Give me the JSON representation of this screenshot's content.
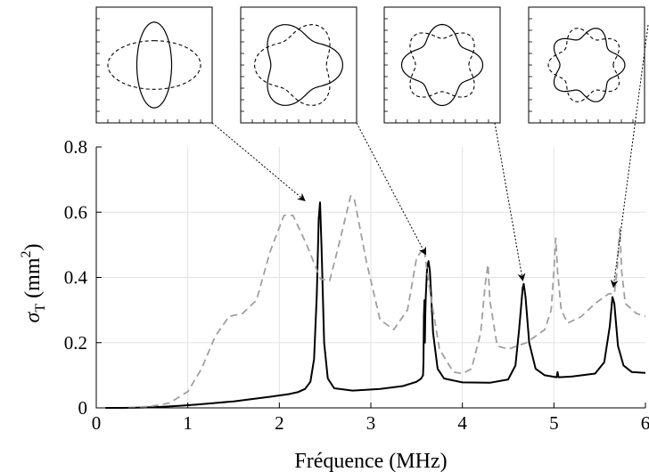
{
  "chart_data": {
    "type": "line",
    "xlabel": "Fréquence (MHz)",
    "ylabel": {
      "base": "σ",
      "sub": "T",
      "unit": "(mm",
      "sup": "2",
      "close": ")"
    },
    "xlim": [
      0,
      6
    ],
    "ylim": [
      0,
      0.8
    ],
    "xticks": [
      "0",
      "1",
      "2",
      "3",
      "4",
      "5",
      "6"
    ],
    "yticks": [
      "0",
      "0.2",
      "0.4",
      "0.6",
      "0.8"
    ],
    "grid": true,
    "series": [
      {
        "style": "solid",
        "color": "#000000",
        "points": [
          [
            0.1,
            0.0
          ],
          [
            0.3,
            0.0
          ],
          [
            0.5,
            0.001
          ],
          [
            0.7,
            0.003
          ],
          [
            0.9,
            0.006
          ],
          [
            1.1,
            0.01
          ],
          [
            1.3,
            0.015
          ],
          [
            1.5,
            0.02
          ],
          [
            1.7,
            0.027
          ],
          [
            1.9,
            0.034
          ],
          [
            2.1,
            0.042
          ],
          [
            2.2,
            0.048
          ],
          [
            2.28,
            0.058
          ],
          [
            2.34,
            0.08
          ],
          [
            2.38,
            0.15
          ],
          [
            2.41,
            0.35
          ],
          [
            2.43,
            0.58
          ],
          [
            2.445,
            0.63
          ],
          [
            2.46,
            0.5
          ],
          [
            2.49,
            0.2
          ],
          [
            2.53,
            0.09
          ],
          [
            2.6,
            0.06
          ],
          [
            2.8,
            0.053
          ],
          [
            3.1,
            0.058
          ],
          [
            3.35,
            0.067
          ],
          [
            3.5,
            0.08
          ],
          [
            3.55,
            0.09
          ],
          [
            3.57,
            0.1
          ],
          [
            3.575,
            0.135
          ],
          [
            3.58,
            0.28
          ],
          [
            3.585,
            0.33
          ],
          [
            3.59,
            0.2
          ],
          [
            3.595,
            0.29
          ],
          [
            3.6,
            0.34
          ],
          [
            3.615,
            0.43
          ],
          [
            3.63,
            0.45
          ],
          [
            3.645,
            0.42
          ],
          [
            3.68,
            0.23
          ],
          [
            3.73,
            0.12
          ],
          [
            3.8,
            0.09
          ],
          [
            4.0,
            0.078
          ],
          [
            4.3,
            0.077
          ],
          [
            4.5,
            0.087
          ],
          [
            4.58,
            0.13
          ],
          [
            4.62,
            0.24
          ],
          [
            4.66,
            0.37
          ],
          [
            4.67,
            0.38
          ],
          [
            4.69,
            0.34
          ],
          [
            4.73,
            0.2
          ],
          [
            4.8,
            0.12
          ],
          [
            4.9,
            0.1
          ],
          [
            5.03,
            0.094
          ],
          [
            5.04,
            0.11
          ],
          [
            5.05,
            0.094
          ],
          [
            5.2,
            0.096
          ],
          [
            5.45,
            0.105
          ],
          [
            5.55,
            0.14
          ],
          [
            5.61,
            0.25
          ],
          [
            5.64,
            0.34
          ],
          [
            5.66,
            0.32
          ],
          [
            5.7,
            0.19
          ],
          [
            5.76,
            0.13
          ],
          [
            5.85,
            0.11
          ],
          [
            6.0,
            0.107
          ]
        ]
      },
      {
        "style": "dashed",
        "color": "#a0a0a0",
        "points": [
          [
            0.35,
            0.0
          ],
          [
            0.6,
            0.005
          ],
          [
            0.8,
            0.015
          ],
          [
            1.0,
            0.05
          ],
          [
            1.15,
            0.12
          ],
          [
            1.3,
            0.22
          ],
          [
            1.45,
            0.28
          ],
          [
            1.6,
            0.29
          ],
          [
            1.75,
            0.33
          ],
          [
            1.9,
            0.48
          ],
          [
            2.05,
            0.59
          ],
          [
            2.15,
            0.59
          ],
          [
            2.3,
            0.5
          ],
          [
            2.45,
            0.395
          ],
          [
            2.55,
            0.39
          ],
          [
            2.65,
            0.5
          ],
          [
            2.78,
            0.65
          ],
          [
            2.82,
            0.64
          ],
          [
            2.95,
            0.45
          ],
          [
            3.1,
            0.27
          ],
          [
            3.25,
            0.24
          ],
          [
            3.4,
            0.3
          ],
          [
            3.5,
            0.46
          ],
          [
            3.58,
            0.49
          ],
          [
            3.65,
            0.35
          ],
          [
            3.75,
            0.18
          ],
          [
            3.9,
            0.11
          ],
          [
            4.0,
            0.105
          ],
          [
            4.1,
            0.12
          ],
          [
            4.2,
            0.23
          ],
          [
            4.25,
            0.38
          ],
          [
            4.28,
            0.44
          ],
          [
            4.3,
            0.33
          ],
          [
            4.38,
            0.19
          ],
          [
            4.5,
            0.18
          ],
          [
            4.7,
            0.2
          ],
          [
            4.9,
            0.24
          ],
          [
            4.97,
            0.3
          ],
          [
            5.0,
            0.42
          ],
          [
            5.02,
            0.52
          ],
          [
            5.04,
            0.42
          ],
          [
            5.08,
            0.3
          ],
          [
            5.15,
            0.26
          ],
          [
            5.3,
            0.28
          ],
          [
            5.45,
            0.32
          ],
          [
            5.6,
            0.35
          ],
          [
            5.66,
            0.35
          ],
          [
            5.69,
            0.42
          ],
          [
            5.72,
            0.55
          ],
          [
            5.74,
            0.42
          ],
          [
            5.78,
            0.32
          ],
          [
            5.9,
            0.29
          ],
          [
            6.0,
            0.28
          ]
        ]
      }
    ],
    "insets": [
      {
        "mode": 2,
        "solid": {
          "rx": 0.3,
          "ry": 0.74
        },
        "dashed": {
          "rx": 0.8,
          "ry": 0.42
        }
      },
      {
        "mode": 3,
        "solid": {
          "r": 0.62,
          "amp": 0.14,
          "phase": 0
        },
        "dashed": {
          "r": 0.62,
          "amp": 0.14,
          "phase": 1
        }
      },
      {
        "mode": 4,
        "solid": {
          "r": 0.58,
          "amp": 0.12,
          "phase": 0
        },
        "dashed": {
          "r": 0.58,
          "amp": 0.12,
          "phase": 1
        }
      },
      {
        "mode": 5,
        "solid": {
          "r": 0.56,
          "amp": 0.1,
          "phase": 0
        },
        "dashed": {
          "r": 0.56,
          "amp": 0.1,
          "phase": 1
        }
      }
    ],
    "arrows": [
      {
        "from_inset": 0,
        "to": [
          2.28,
          0.635
        ]
      },
      {
        "from_inset": 1,
        "to": [
          3.6,
          0.47
        ]
      },
      {
        "from_inset": 2,
        "to": [
          4.66,
          0.39
        ]
      },
      {
        "from_inset": 3,
        "to": [
          5.65,
          0.37
        ]
      }
    ]
  }
}
